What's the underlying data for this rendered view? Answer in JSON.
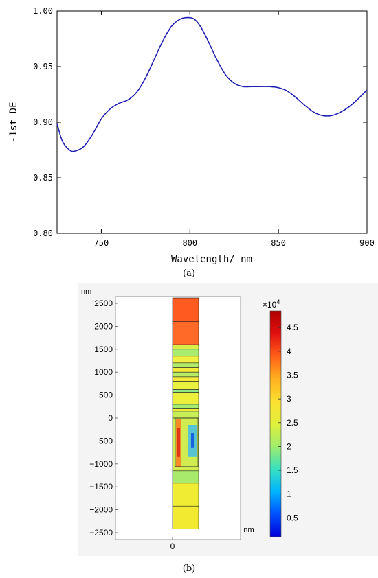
{
  "chart_data": [
    {
      "type": "line",
      "panel_label": "(a)",
      "xlabel": "Wavelength/ nm",
      "ylabel": "-1st DE",
      "xlim": [
        725,
        900
      ],
      "ylim": [
        0.8,
        1.0
      ],
      "x_ticks": [
        750,
        800,
        850,
        900
      ],
      "x_tick_labels": [
        "750",
        "800",
        "850",
        "900"
      ],
      "y_ticks": [
        0.8,
        0.85,
        0.9,
        0.95,
        1.0
      ],
      "y_tick_labels": [
        "0.80",
        "0.85",
        "0.90",
        "0.95",
        "1.00"
      ],
      "grid": false,
      "line_color": "#1f1fb4",
      "series": [
        {
          "x": [
            725,
            728,
            732,
            735,
            740,
            745,
            750,
            755,
            760,
            765,
            770,
            775,
            780,
            785,
            790,
            795,
            800,
            803,
            806,
            810,
            815,
            820,
            825,
            830,
            835,
            840,
            845,
            850,
            855,
            860,
            865,
            870,
            875,
            880,
            885,
            890,
            895,
            900
          ],
          "y": [
            0.899,
            0.883,
            0.875,
            0.874,
            0.878,
            0.889,
            0.903,
            0.912,
            0.917,
            0.92,
            0.927,
            0.94,
            0.957,
            0.974,
            0.987,
            0.993,
            0.994,
            0.992,
            0.986,
            0.974,
            0.957,
            0.943,
            0.935,
            0.932,
            0.932,
            0.932,
            0.932,
            0.931,
            0.928,
            0.922,
            0.915,
            0.909,
            0.906,
            0.906,
            0.909,
            0.914,
            0.921,
            0.929
          ]
        }
      ]
    },
    {
      "type": "heatmap",
      "panel_label": "(b)",
      "y_unit": "nm",
      "x_unit": "nm",
      "y_ticks": [
        2500,
        2000,
        1500,
        1000,
        500,
        0,
        -500,
        -1000,
        -1500,
        -2000,
        -2500
      ],
      "y_tick_labels": [
        "2500",
        "2000",
        "1500",
        "1000",
        "500",
        "0",
        "−500",
        "−1000",
        "−1500",
        "−2000",
        "−2500"
      ],
      "ylim": [
        -2650,
        2650
      ],
      "x_ticks": [
        0
      ],
      "x_tick_labels": [
        "0"
      ],
      "colorbar": {
        "multiplier": "×10",
        "exponent": "4",
        "ticks": [
          0.5,
          1,
          1.5,
          2,
          2.5,
          3,
          3.5,
          4,
          4.5
        ],
        "tick_labels": [
          "0.5",
          "1",
          "1.5",
          "2",
          "2.5",
          "3",
          "3.5",
          "4",
          "4.5"
        ],
        "range": [
          0.1,
          4.85
        ],
        "colors": [
          "#0000d8",
          "#0050ff",
          "#00b4ff",
          "#38e0c0",
          "#a0ec6c",
          "#e0f03c",
          "#fce030",
          "#ffb020",
          "#ff6018",
          "#e01010",
          "#b00000"
        ]
      },
      "structure_layers_nm": [
        {
          "top": 2620,
          "bottom": 2100,
          "color": "#ff5a20"
        },
        {
          "top": 2100,
          "bottom": 1600,
          "color": "#ff6a28"
        },
        {
          "top": 1600,
          "bottom": 1500,
          "color": "#d8ee48"
        },
        {
          "top": 1500,
          "bottom": 1350,
          "color": "#a8ec70"
        },
        {
          "top": 1350,
          "bottom": 1200,
          "color": "#f0f040"
        },
        {
          "top": 1200,
          "bottom": 1100,
          "color": "#b0ec68"
        },
        {
          "top": 1100,
          "bottom": 1000,
          "color": "#f4ec38"
        },
        {
          "top": 1000,
          "bottom": 900,
          "color": "#b8ec64"
        },
        {
          "top": 900,
          "bottom": 800,
          "color": "#f4e838"
        },
        {
          "top": 800,
          "bottom": 620,
          "color": "#e8f040"
        },
        {
          "top": 620,
          "bottom": 560,
          "color": "#90e884"
        },
        {
          "top": 560,
          "bottom": 300,
          "color": "#ecee3c"
        },
        {
          "top": 300,
          "bottom": 200,
          "color": "#a4ec70"
        },
        {
          "top": 200,
          "bottom": 150,
          "color": "#f2ea38"
        },
        {
          "top": 150,
          "bottom": 0,
          "color": "#c8ee58"
        },
        {
          "top": 0,
          "bottom": -1150,
          "color": "#d0ec50"
        },
        {
          "top": -1150,
          "bottom": -1420,
          "color": "#a8ea6c"
        },
        {
          "top": -1420,
          "bottom": -1920,
          "color": "#f0ec34"
        },
        {
          "top": -1920,
          "bottom": -2420,
          "color": "#f2ea30"
        }
      ]
    }
  ]
}
